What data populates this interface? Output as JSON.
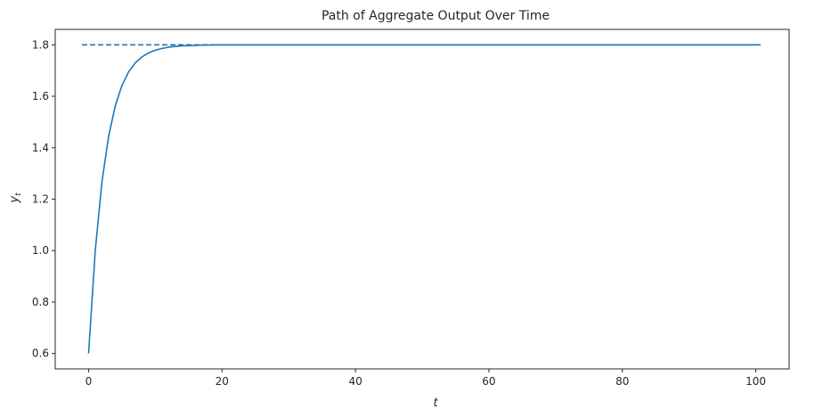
{
  "chart_data": {
    "type": "line",
    "title": "Path of Aggregate Output Over Time",
    "xlabel": "t",
    "ylabel_main": "y",
    "ylabel_sub": "t",
    "xlim": [
      -5,
      105
    ],
    "ylim": [
      0.54,
      1.86
    ],
    "xticks": [
      0,
      20,
      40,
      60,
      80,
      100
    ],
    "yticks": [
      0.6,
      0.8,
      1.0,
      1.2,
      1.4,
      1.6,
      1.8
    ],
    "ytick_labels": [
      "0.6",
      "0.8",
      "1.0",
      "1.2",
      "1.4",
      "1.6",
      "1.8"
    ],
    "grid": false,
    "color": "#1f77b4",
    "steady_state": {
      "value": 1.8,
      "x_start": -1,
      "x_end": 101,
      "style": "dashed"
    },
    "series": [
      {
        "x": [
          0,
          1,
          2,
          3,
          4,
          5,
          6,
          7,
          8,
          9,
          10,
          11,
          12,
          13,
          14,
          15,
          16,
          17,
          18,
          19,
          20,
          22,
          24,
          26,
          28,
          30,
          35,
          40,
          45,
          50,
          55,
          60,
          65,
          70,
          75,
          80,
          85,
          90,
          95,
          100
        ],
        "values": [
          0.6,
          1.0,
          1.267,
          1.444,
          1.563,
          1.642,
          1.695,
          1.73,
          1.753,
          1.769,
          1.779,
          1.786,
          1.791,
          1.794,
          1.796,
          1.797,
          1.798,
          1.799,
          1.799,
          1.8,
          1.8,
          1.8,
          1.8,
          1.8,
          1.8,
          1.8,
          1.8,
          1.8,
          1.8,
          1.8,
          1.8,
          1.8,
          1.8,
          1.8,
          1.8,
          1.8,
          1.8,
          1.8,
          1.8,
          1.8
        ]
      }
    ]
  }
}
